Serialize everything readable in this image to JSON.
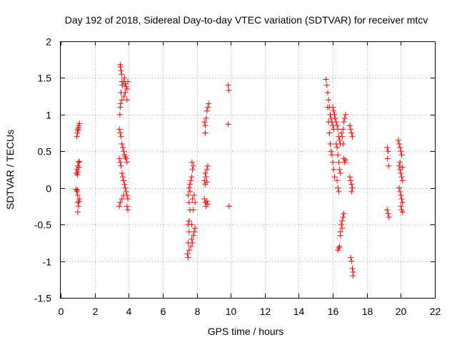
{
  "chart_data": {
    "type": "scatter",
    "title": "Day 192 of 2018, Sidereal Day-to-day VTEC variation (SDTVAR) for receiver mtcv",
    "xlabel": "GPS time / hours",
    "ylabel": "SDTVAR / TECUs",
    "xlim": [
      0,
      22
    ],
    "ylim": [
      -1.5,
      2
    ],
    "xticks": [
      0,
      2,
      4,
      6,
      8,
      10,
      12,
      14,
      16,
      18,
      20,
      22
    ],
    "yticks": [
      -1.5,
      -1,
      -0.5,
      0,
      0.5,
      1,
      1.5,
      2
    ],
    "ytick_labels": [
      "-1.5",
      "-1",
      "-0.5",
      "0",
      "0.5",
      "1",
      "1.5",
      "2"
    ],
    "grid": true,
    "marker": "plus",
    "color": "#ff0000",
    "series": [
      {
        "name": "SDTVAR",
        "points": [
          [
            0.95,
            0.7
          ],
          [
            0.98,
            0.75
          ],
          [
            1.0,
            0.8
          ],
          [
            1.02,
            0.78
          ],
          [
            1.05,
            0.82
          ],
          [
            1.07,
            0.85
          ],
          [
            1.1,
            0.88
          ],
          [
            0.92,
            0.2
          ],
          [
            0.95,
            0.25
          ],
          [
            0.98,
            0.18
          ],
          [
            1.0,
            0.3
          ],
          [
            1.02,
            0.22
          ],
          [
            1.05,
            0.35
          ],
          [
            1.08,
            0.28
          ],
          [
            1.1,
            0.36
          ],
          [
            0.9,
            -0.02
          ],
          [
            0.95,
            -0.05
          ],
          [
            0.98,
            -0.03
          ],
          [
            1.0,
            -0.1
          ],
          [
            1.02,
            -0.2
          ],
          [
            1.05,
            -0.25
          ],
          [
            1.0,
            -0.33
          ],
          [
            1.08,
            -0.18
          ],
          [
            1.1,
            -0.15
          ],
          [
            3.5,
            1.68
          ],
          [
            3.52,
            1.65
          ],
          [
            3.55,
            1.6
          ],
          [
            3.58,
            1.55
          ],
          [
            3.6,
            1.45
          ],
          [
            3.62,
            1.4
          ],
          [
            3.55,
            1.3
          ],
          [
            3.5,
            1.1
          ],
          [
            3.48,
            1.0
          ],
          [
            3.52,
            1.15
          ],
          [
            3.6,
            1.2
          ],
          [
            3.7,
            1.45
          ],
          [
            3.75,
            1.5
          ],
          [
            3.8,
            1.42
          ],
          [
            3.85,
            1.38
          ],
          [
            3.9,
            1.35
          ],
          [
            3.95,
            1.45
          ],
          [
            3.72,
            1.25
          ],
          [
            3.8,
            1.3
          ],
          [
            3.9,
            1.2
          ],
          [
            3.45,
            0.8
          ],
          [
            3.5,
            0.75
          ],
          [
            3.55,
            0.7
          ],
          [
            3.6,
            0.6
          ],
          [
            3.65,
            0.55
          ],
          [
            3.7,
            0.5
          ],
          [
            3.75,
            0.45
          ],
          [
            3.8,
            0.42
          ],
          [
            3.85,
            0.4
          ],
          [
            3.9,
            0.35
          ],
          [
            3.45,
            0.4
          ],
          [
            3.5,
            0.35
          ],
          [
            3.55,
            0.3
          ],
          [
            3.6,
            0.2
          ],
          [
            3.65,
            0.15
          ],
          [
            3.7,
            0.1
          ],
          [
            3.75,
            0.05
          ],
          [
            3.8,
            0.0
          ],
          [
            3.85,
            -0.05
          ],
          [
            3.9,
            -0.1
          ],
          [
            3.95,
            -0.15
          ],
          [
            3.5,
            -0.2
          ],
          [
            3.45,
            -0.25
          ],
          [
            3.6,
            -0.15
          ],
          [
            3.7,
            -0.1
          ],
          [
            3.9,
            -0.25
          ],
          [
            3.95,
            -0.3
          ],
          [
            7.45,
            -0.9
          ],
          [
            7.5,
            -0.95
          ],
          [
            7.55,
            -0.85
          ],
          [
            7.5,
            -0.75
          ],
          [
            7.55,
            -0.6
          ],
          [
            7.5,
            -0.5
          ],
          [
            7.55,
            -0.45
          ],
          [
            7.6,
            -0.3
          ],
          [
            7.55,
            -0.2
          ],
          [
            7.5,
            -0.1
          ],
          [
            7.55,
            0.0
          ],
          [
            7.6,
            0.05
          ],
          [
            7.6,
            -0.05
          ],
          [
            7.7,
            -0.7
          ],
          [
            7.75,
            -0.75
          ],
          [
            7.8,
            -0.65
          ],
          [
            7.85,
            -0.6
          ],
          [
            7.9,
            -0.55
          ],
          [
            7.65,
            -0.8
          ],
          [
            7.7,
            -0.5
          ],
          [
            7.65,
            0.1
          ],
          [
            7.7,
            0.15
          ],
          [
            7.75,
            0.25
          ],
          [
            7.8,
            0.3
          ],
          [
            7.72,
            0.35
          ],
          [
            7.85,
            -0.1
          ],
          [
            7.9,
            -0.2
          ],
          [
            7.8,
            -0.3
          ],
          [
            7.75,
            -0.15
          ],
          [
            8.45,
            0.9
          ],
          [
            8.5,
            0.85
          ],
          [
            8.55,
            0.95
          ],
          [
            8.6,
            1.05
          ],
          [
            8.65,
            1.1
          ],
          [
            8.7,
            1.15
          ],
          [
            8.5,
            0.75
          ],
          [
            8.45,
            0.1
          ],
          [
            8.5,
            0.2
          ],
          [
            8.55,
            0.15
          ],
          [
            8.6,
            0.25
          ],
          [
            8.65,
            0.3
          ],
          [
            8.5,
            0.05
          ],
          [
            8.6,
            0.08
          ],
          [
            8.45,
            -0.15
          ],
          [
            8.5,
            -0.2
          ],
          [
            8.55,
            -0.25
          ],
          [
            8.6,
            -0.18
          ],
          [
            8.65,
            -0.22
          ],
          [
            9.85,
            1.4
          ],
          [
            9.88,
            1.33
          ],
          [
            9.85,
            0.87
          ],
          [
            9.9,
            -0.25
          ],
          [
            15.6,
            1.48
          ],
          [
            15.65,
            1.4
          ],
          [
            15.7,
            1.3
          ],
          [
            15.75,
            1.2
          ],
          [
            15.8,
            1.1
          ],
          [
            15.85,
            1.0
          ],
          [
            15.9,
            0.95
          ],
          [
            15.95,
            0.9
          ],
          [
            16.0,
            0.85
          ],
          [
            16.05,
            0.8
          ],
          [
            15.7,
            1.1
          ],
          [
            15.75,
            0.9
          ],
          [
            15.8,
            0.75
          ],
          [
            15.85,
            0.6
          ],
          [
            15.9,
            0.5
          ],
          [
            15.95,
            0.45
          ],
          [
            16.0,
            0.35
          ],
          [
            16.05,
            0.25
          ],
          [
            16.1,
            0.15
          ],
          [
            16.0,
            1.1
          ],
          [
            16.05,
            1.05
          ],
          [
            16.1,
            1.0
          ],
          [
            16.15,
            0.95
          ],
          [
            16.2,
            0.9
          ],
          [
            16.25,
            0.85
          ],
          [
            16.3,
            0.8
          ],
          [
            16.35,
            0.7
          ],
          [
            16.4,
            0.65
          ],
          [
            16.45,
            0.6
          ],
          [
            16.2,
            0.6
          ],
          [
            16.25,
            0.55
          ],
          [
            16.3,
            0.45
          ],
          [
            16.35,
            0.35
          ],
          [
            16.4,
            0.25
          ],
          [
            16.45,
            0.2
          ],
          [
            16.3,
            0.0
          ],
          [
            16.35,
            -0.05
          ],
          [
            16.25,
            0.1
          ],
          [
            16.5,
            0.75
          ],
          [
            16.55,
            0.7
          ],
          [
            16.6,
            0.8
          ],
          [
            16.65,
            0.9
          ],
          [
            16.7,
            0.95
          ],
          [
            16.75,
            1.0
          ],
          [
            16.6,
            0.6
          ],
          [
            16.65,
            0.4
          ],
          [
            16.7,
            0.35
          ],
          [
            16.75,
            0.38
          ],
          [
            16.3,
            -0.85
          ],
          [
            16.35,
            -0.82
          ],
          [
            16.4,
            -0.8
          ],
          [
            16.45,
            -0.65
          ],
          [
            16.5,
            -0.5
          ],
          [
            16.55,
            -0.45
          ],
          [
            16.6,
            -0.4
          ],
          [
            16.65,
            -0.35
          ],
          [
            16.45,
            -0.6
          ],
          [
            16.55,
            -0.55
          ],
          [
            17.0,
            0.85
          ],
          [
            17.05,
            0.8
          ],
          [
            17.1,
            0.75
          ],
          [
            17.15,
            0.7
          ],
          [
            17.05,
            0.1
          ],
          [
            17.1,
            0.05
          ],
          [
            17.15,
            0.0
          ],
          [
            17.1,
            -0.05
          ],
          [
            17.0,
            0.15
          ],
          [
            17.05,
            -0.95
          ],
          [
            17.1,
            -1.0
          ],
          [
            17.15,
            -1.1
          ],
          [
            17.2,
            -1.15
          ],
          [
            17.18,
            -1.2
          ],
          [
            19.2,
            0.55
          ],
          [
            19.25,
            0.5
          ],
          [
            19.22,
            0.4
          ],
          [
            19.28,
            0.3
          ],
          [
            19.2,
            -0.3
          ],
          [
            19.25,
            -0.35
          ],
          [
            19.3,
            -0.4
          ],
          [
            19.85,
            0.65
          ],
          [
            19.9,
            0.6
          ],
          [
            19.95,
            0.55
          ],
          [
            20.0,
            0.5
          ],
          [
            20.05,
            0.45
          ],
          [
            19.9,
            0.3
          ],
          [
            19.95,
            0.25
          ],
          [
            20.0,
            0.2
          ],
          [
            20.05,
            0.15
          ],
          [
            20.1,
            0.1
          ],
          [
            19.9,
            0.0
          ],
          [
            19.95,
            -0.05
          ],
          [
            20.0,
            -0.1
          ],
          [
            20.05,
            -0.15
          ],
          [
            20.1,
            -0.2
          ],
          [
            20.0,
            -0.25
          ],
          [
            20.05,
            -0.3
          ],
          [
            20.1,
            -0.33
          ],
          [
            19.95,
            0.35
          ],
          [
            20.1,
            0.28
          ]
        ]
      }
    ]
  }
}
